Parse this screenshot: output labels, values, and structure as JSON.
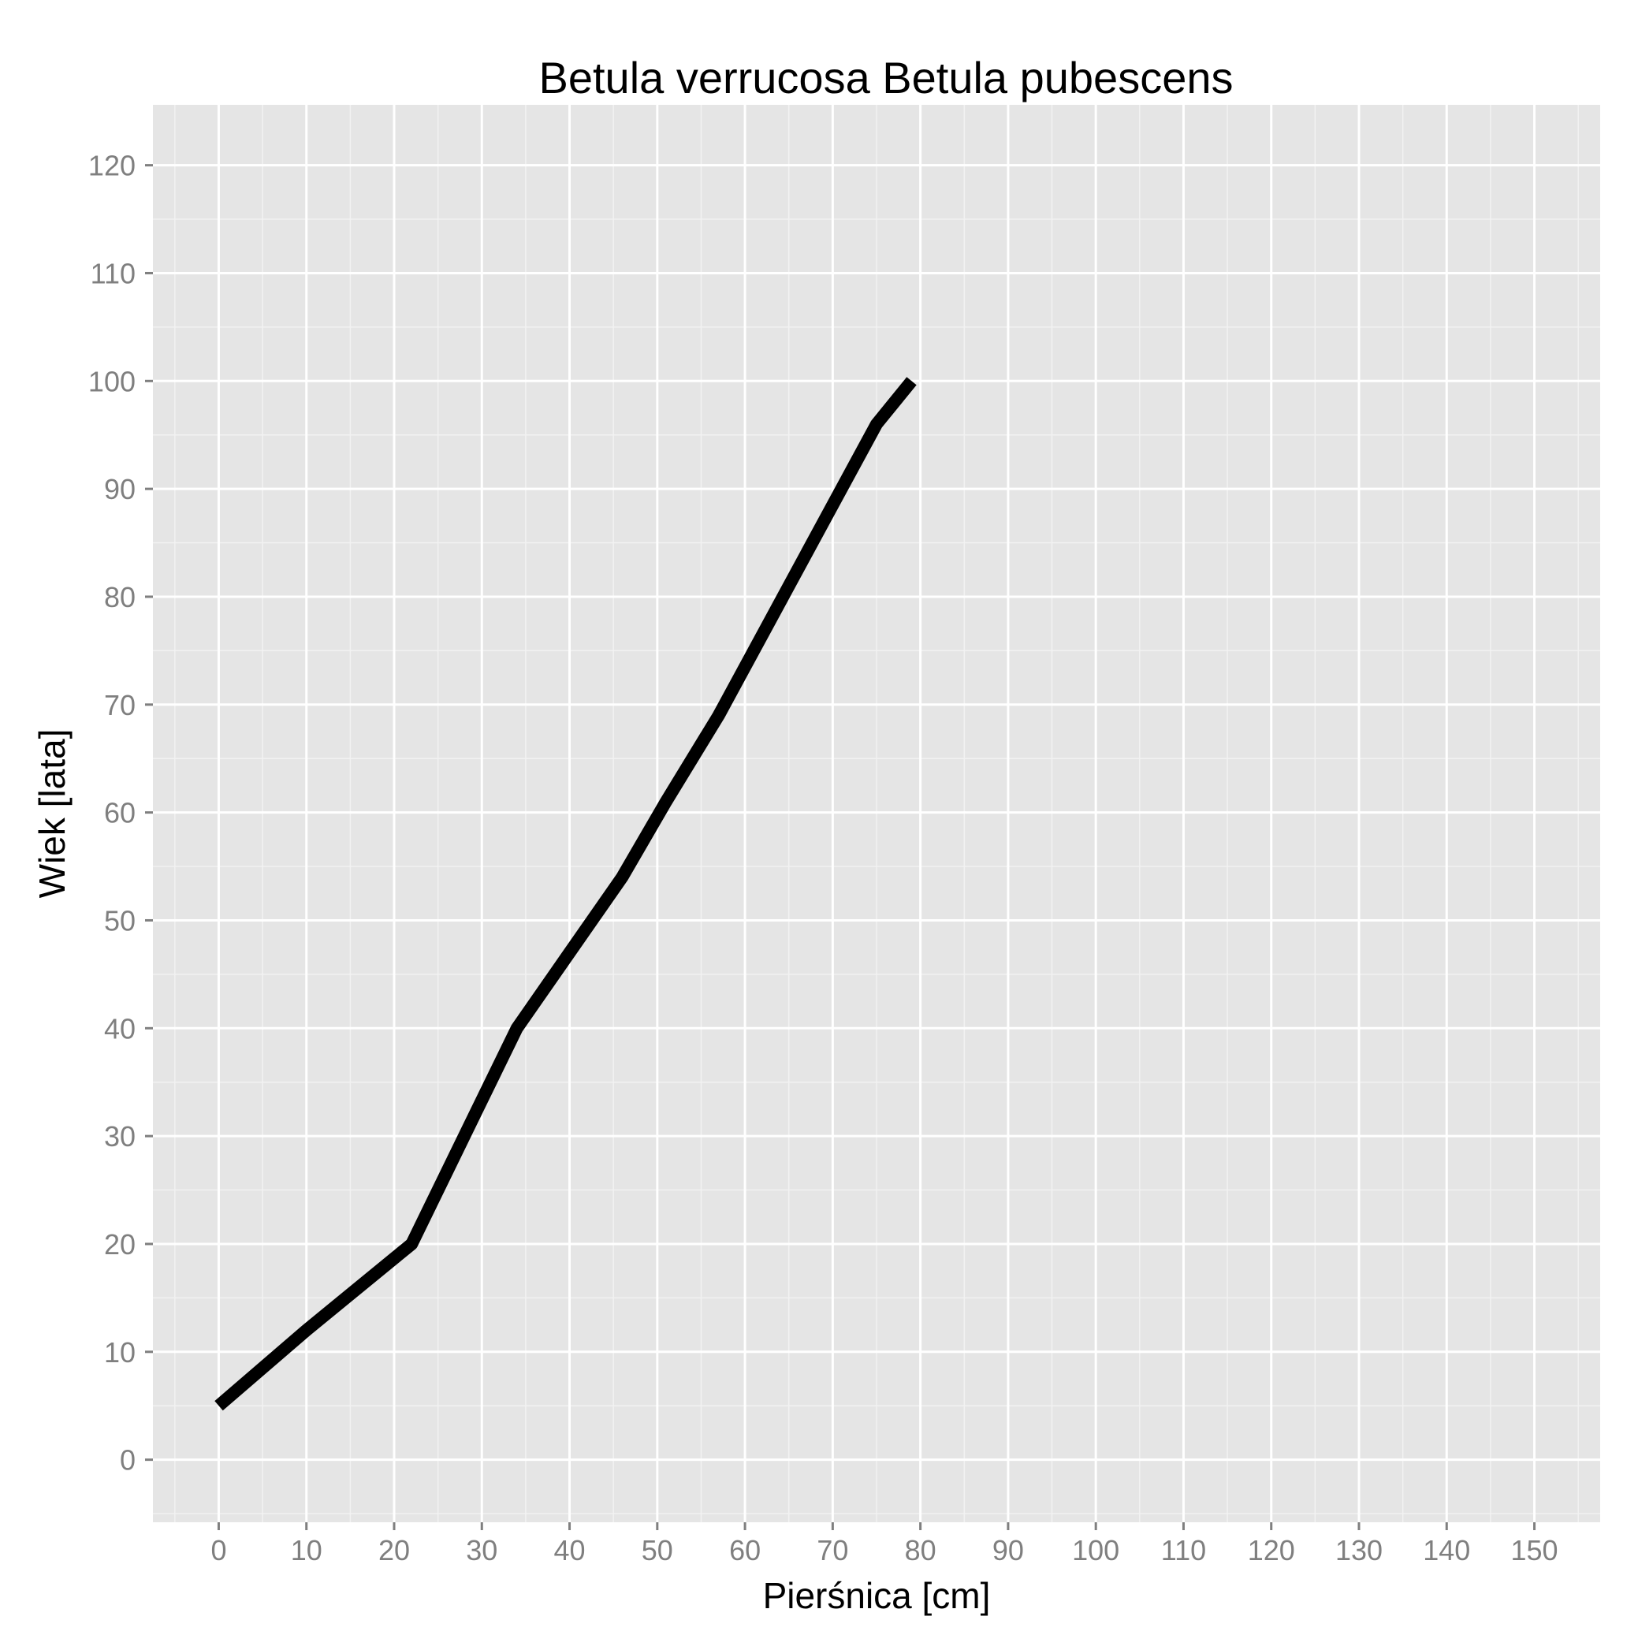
{
  "chart_data": {
    "type": "line",
    "title": "Betula verrucosa Betula pubescens",
    "xlabel": "Pierśnica [cm]",
    "ylabel": "Wiek [lata]",
    "xlim": [
      -7.5,
      157.5
    ],
    "ylim": [
      -5.8,
      125.6
    ],
    "xticks": [
      0,
      10,
      20,
      30,
      40,
      50,
      60,
      70,
      80,
      90,
      100,
      110,
      120,
      130,
      140,
      150
    ],
    "yticks": [
      0,
      10,
      20,
      30,
      40,
      50,
      60,
      70,
      80,
      90,
      100,
      110,
      120
    ],
    "grid": true,
    "legend": "none",
    "colors": {
      "panel": "#e5e5e5",
      "grid": "#ffffff",
      "line": "#000000",
      "tick_text": "#7f7f7f"
    },
    "series": [
      {
        "x": [
          0,
          10,
          22,
          28,
          34,
          40,
          46,
          51,
          57,
          63,
          69,
          75,
          79
        ],
        "y": [
          5,
          12,
          20,
          30,
          40,
          47,
          54,
          61,
          69,
          78,
          87,
          96,
          100
        ]
      }
    ]
  }
}
